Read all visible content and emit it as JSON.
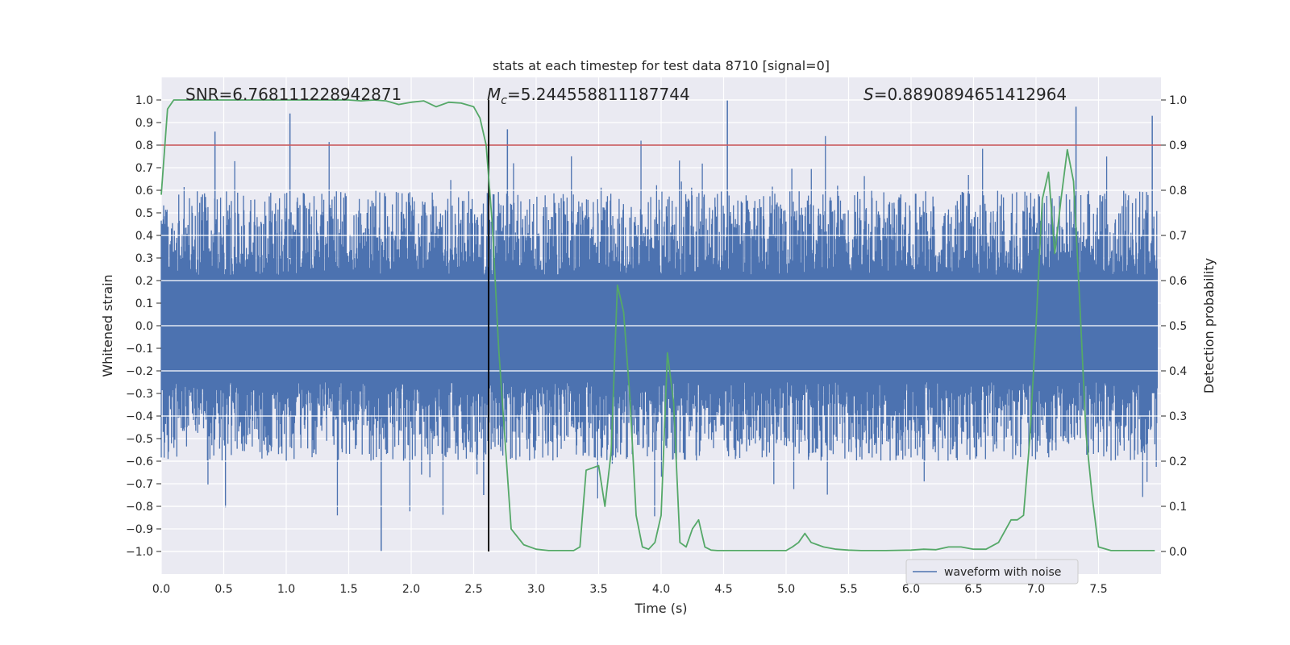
{
  "chart_data": {
    "type": "line",
    "title": "stats at each timestep for test data 8710 [signal=0]",
    "xlabel": "Time (s)",
    "ylabel": "Whitened strain",
    "y2label": "Detection probability",
    "xlim": [
      0.0,
      8.0
    ],
    "ylim": [
      -1.1,
      1.1
    ],
    "y2lim": [
      -0.05,
      1.05
    ],
    "grid": true,
    "xticks": [
      0.0,
      0.5,
      1.0,
      1.5,
      2.0,
      2.5,
      3.0,
      3.5,
      4.0,
      4.5,
      5.0,
      5.5,
      6.0,
      6.5,
      7.0,
      7.5
    ],
    "xtick_labels": [
      "0.0",
      "0.5",
      "1.0",
      "1.5",
      "2.0",
      "2.5",
      "3.0",
      "3.5",
      "4.0",
      "4.5",
      "5.0",
      "5.5",
      "6.0",
      "6.5",
      "7.0",
      "7.5"
    ],
    "yticks": [
      -1.0,
      -0.9,
      -0.8,
      -0.7,
      -0.6,
      -0.5,
      -0.4,
      -0.3,
      -0.2,
      -0.1,
      0.0,
      0.1,
      0.2,
      0.3,
      0.4,
      0.5,
      0.6,
      0.7,
      0.8,
      0.9,
      1.0
    ],
    "ytick_labels": [
      "−1.0",
      "−0.9",
      "−0.8",
      "−0.7",
      "−0.6",
      "−0.5",
      "−0.4",
      "−0.3",
      "−0.2",
      "−0.1",
      "0.0",
      "0.1",
      "0.2",
      "0.3",
      "0.4",
      "0.5",
      "0.6",
      "0.7",
      "0.8",
      "0.9",
      "1.0"
    ],
    "y2ticks": [
      0.0,
      0.1,
      0.2,
      0.3,
      0.4,
      0.5,
      0.6,
      0.7,
      0.8,
      0.9,
      1.0
    ],
    "y2tick_labels": [
      "0.0",
      "0.1",
      "0.2",
      "0.3",
      "0.4",
      "0.5",
      "0.6",
      "0.7",
      "0.8",
      "0.9",
      "1.0"
    ],
    "annotations": {
      "snr": "SNR=6.768111228942871",
      "mc_symbol": "M",
      "mc_sub": "c",
      "mc_value": "=5.244558811187744",
      "s_symbol": "S",
      "s_value": "=0.8890894651412964"
    },
    "threshold_line": {
      "y": 0.8,
      "color": "#c44e52"
    },
    "marker_line": {
      "x": 2.62,
      "y_from": -1.0,
      "y_to": 1.0,
      "color": "#000000"
    },
    "series": [
      {
        "name": "waveform with noise",
        "axis": "left",
        "color": "#4c72b0",
        "kind": "noise",
        "sample_count": 2048,
        "typical_envelope": 0.5,
        "peaks": [
          {
            "x": 0.43,
            "y": 0.86
          },
          {
            "x": 1.03,
            "y": 0.94
          },
          {
            "x": 1.76,
            "y": -1.0
          },
          {
            "x": 2.77,
            "y": 0.87
          },
          {
            "x": 4.53,
            "y": 1.0
          },
          {
            "x": 7.32,
            "y": 0.97
          },
          {
            "x": 7.93,
            "y": 0.93
          },
          {
            "x": 2.58,
            "y": -0.75
          }
        ]
      },
      {
        "name": "detection probability",
        "axis": "right",
        "color": "#55a868",
        "x": [
          0.0,
          0.05,
          0.1,
          0.15,
          0.2,
          0.3,
          0.4,
          0.5,
          0.6,
          0.7,
          0.8,
          0.9,
          1.0,
          1.1,
          1.2,
          1.3,
          1.4,
          1.5,
          1.6,
          1.7,
          1.8,
          1.9,
          2.0,
          2.1,
          2.2,
          2.3,
          2.4,
          2.5,
          2.55,
          2.6,
          2.65,
          2.7,
          2.8,
          2.9,
          3.0,
          3.1,
          3.2,
          3.3,
          3.35,
          3.4,
          3.5,
          3.55,
          3.6,
          3.65,
          3.7,
          3.75,
          3.8,
          3.85,
          3.9,
          3.95,
          4.0,
          4.05,
          4.1,
          4.15,
          4.2,
          4.25,
          4.3,
          4.35,
          4.4,
          4.45,
          4.5,
          4.6,
          4.8,
          5.0,
          5.05,
          5.1,
          5.15,
          5.2,
          5.25,
          5.3,
          5.4,
          5.5,
          5.6,
          5.8,
          6.0,
          6.1,
          6.2,
          6.3,
          6.4,
          6.5,
          6.6,
          6.7,
          6.8,
          6.85,
          6.9,
          6.95,
          7.0,
          7.05,
          7.1,
          7.15,
          7.2,
          7.25,
          7.3,
          7.35,
          7.4,
          7.45,
          7.5,
          7.6,
          7.8,
          7.95
        ],
        "values": [
          0.79,
          0.98,
          1.0,
          1.0,
          1.0,
          1.0,
          1.0,
          1.0,
          1.0,
          1.0,
          1.0,
          1.0,
          1.0,
          1.0,
          1.0,
          1.0,
          1.0,
          1.0,
          0.998,
          1.0,
          0.998,
          0.99,
          0.995,
          0.998,
          0.985,
          0.995,
          0.993,
          0.985,
          0.96,
          0.9,
          0.72,
          0.45,
          0.05,
          0.015,
          0.005,
          0.002,
          0.002,
          0.002,
          0.01,
          0.18,
          0.19,
          0.1,
          0.22,
          0.59,
          0.53,
          0.34,
          0.08,
          0.01,
          0.005,
          0.02,
          0.08,
          0.44,
          0.33,
          0.02,
          0.01,
          0.05,
          0.07,
          0.01,
          0.003,
          0.002,
          0.002,
          0.002,
          0.002,
          0.002,
          0.01,
          0.02,
          0.04,
          0.02,
          0.015,
          0.01,
          0.005,
          0.003,
          0.002,
          0.002,
          0.003,
          0.005,
          0.004,
          0.01,
          0.01,
          0.005,
          0.005,
          0.02,
          0.07,
          0.07,
          0.08,
          0.25,
          0.5,
          0.78,
          0.84,
          0.66,
          0.78,
          0.89,
          0.82,
          0.55,
          0.26,
          0.12,
          0.01,
          0.002,
          0.002,
          0.002
        ]
      }
    ],
    "legend": {
      "label": "waveform with noise",
      "color": "#4c72b0",
      "placement": "lower-right"
    }
  }
}
